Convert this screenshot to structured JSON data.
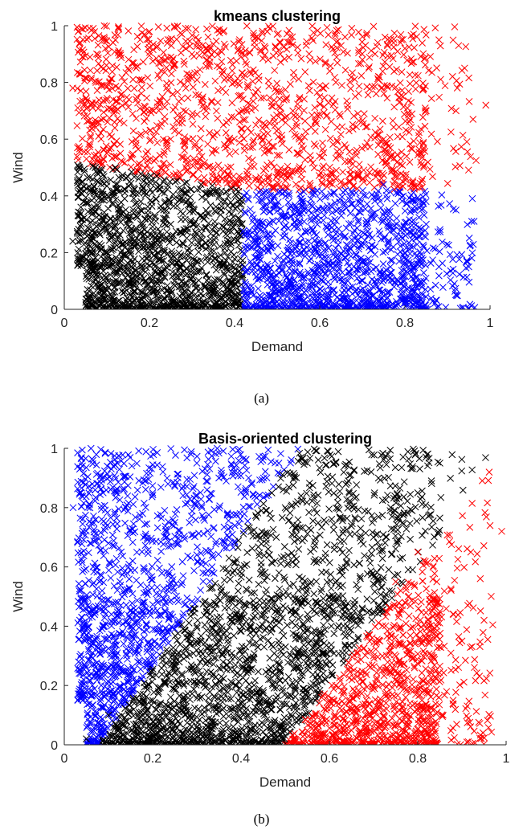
{
  "chart_data": [
    {
      "type": "scatter",
      "title": "kmeans clustering",
      "xlabel": "Demand",
      "ylabel": "Wind",
      "xlim": [
        0,
        1
      ],
      "ylim": [
        0,
        1
      ],
      "xticks": [
        "0",
        "0.2",
        "0.4",
        "0.6",
        "0.8",
        "1"
      ],
      "yticks": [
        "0",
        "0.2",
        "0.4",
        "0.6",
        "0.8",
        "1"
      ],
      "marker": "x",
      "grid": false,
      "caption": "(a)",
      "clusters": [
        {
          "color": "#ff0000",
          "description_region": "wind above ~0.42-0.5 boundary",
          "sample_points": [
            [
              0.02,
              0.78
            ],
            [
              0.05,
              0.72
            ],
            [
              0.08,
              0.66
            ],
            [
              0.1,
              0.55
            ],
            [
              0.12,
              0.95
            ],
            [
              0.15,
              0.85
            ],
            [
              0.2,
              0.7
            ],
            [
              0.25,
              0.6
            ],
            [
              0.3,
              0.9
            ],
            [
              0.35,
              0.5
            ],
            [
              0.4,
              0.8
            ],
            [
              0.45,
              0.65
            ],
            [
              0.5,
              0.97
            ],
            [
              0.55,
              0.55
            ],
            [
              0.6,
              0.75
            ],
            [
              0.65,
              0.45
            ],
            [
              0.7,
              0.88
            ],
            [
              0.75,
              0.6
            ],
            [
              0.8,
              0.92
            ],
            [
              0.85,
              0.7
            ],
            [
              0.88,
              0.95
            ],
            [
              0.92,
              0.7
            ],
            [
              0.96,
              0.67
            ],
            [
              0.99,
              0.72
            ]
          ]
        },
        {
          "color": "#000000",
          "description_region": "demand below ~0.42, wind below ~0.5",
          "sample_points": [
            [
              0.02,
              0.24
            ],
            [
              0.04,
              0.3
            ],
            [
              0.06,
              0.05
            ],
            [
              0.08,
              0.45
            ],
            [
              0.1,
              0.2
            ],
            [
              0.12,
              0.5
            ],
            [
              0.15,
              0.1
            ],
            [
              0.18,
              0.38
            ],
            [
              0.2,
              0.02
            ],
            [
              0.25,
              0.3
            ],
            [
              0.3,
              0.15
            ],
            [
              0.35,
              0.42
            ],
            [
              0.4,
              0.05
            ]
          ]
        },
        {
          "color": "#0000ff",
          "description_region": "demand above ~0.42, wind below ~0.42",
          "sample_points": [
            [
              0.43,
              0.05
            ],
            [
              0.48,
              0.3
            ],
            [
              0.52,
              0.4
            ],
            [
              0.6,
              0.15
            ],
            [
              0.65,
              0.35
            ],
            [
              0.7,
              0.1
            ],
            [
              0.75,
              0.44
            ],
            [
              0.8,
              0.2
            ],
            [
              0.85,
              0.3
            ],
            [
              0.88,
              0.15
            ],
            [
              0.92,
              0.35
            ],
            [
              0.95,
              0.15
            ]
          ]
        }
      ]
    },
    {
      "type": "scatter",
      "title": "Basis-oriented clustering",
      "xlabel": "Demand",
      "ylabel": "Wind",
      "xlim": [
        0,
        1
      ],
      "ylim": [
        0,
        1
      ],
      "xticks": [
        "0",
        "0.2",
        "0.4",
        "0.6",
        "0.8",
        "1"
      ],
      "yticks": [
        "0",
        "0.2",
        "0.4",
        "0.6",
        "0.8",
        "1"
      ],
      "marker": "x",
      "grid": false,
      "caption": "(b)",
      "clusters": [
        {
          "color": "#0000ff",
          "description_region": "upper-left: wind above line from (0.1,0) to (0.5,1)",
          "sample_points": [
            [
              0.02,
              0.8
            ],
            [
              0.04,
              0.2
            ],
            [
              0.06,
              0.3
            ],
            [
              0.08,
              0.55
            ],
            [
              0.1,
              0.68
            ],
            [
              0.12,
              0.95
            ],
            [
              0.15,
              0.4
            ],
            [
              0.2,
              0.85
            ],
            [
              0.25,
              0.75
            ],
            [
              0.3,
              0.95
            ],
            [
              0.35,
              0.9
            ]
          ]
        },
        {
          "color": "#000000",
          "description_region": "middle diagonal band",
          "sample_points": [
            [
              0.05,
              0.02
            ],
            [
              0.1,
              0.1
            ],
            [
              0.2,
              0.15
            ],
            [
              0.3,
              0.4
            ],
            [
              0.4,
              0.6
            ],
            [
              0.5,
              0.8
            ],
            [
              0.55,
              0.95
            ],
            [
              0.6,
              0.5
            ],
            [
              0.7,
              0.7
            ],
            [
              0.8,
              0.85
            ],
            [
              0.85,
              0.95
            ]
          ]
        },
        {
          "color": "#ff0000",
          "description_region": "lower-right: wind below line from (0.5,0) to (0.85,0.7)",
          "sample_points": [
            [
              0.52,
              0.02
            ],
            [
              0.6,
              0.15
            ],
            [
              0.7,
              0.3
            ],
            [
              0.75,
              0.55
            ],
            [
              0.8,
              0.65
            ],
            [
              0.85,
              0.45
            ],
            [
              0.88,
              0.15
            ],
            [
              0.9,
              0.35
            ],
            [
              0.92,
              0.65
            ],
            [
              0.95,
              0.42
            ],
            [
              0.99,
              0.72
            ]
          ]
        }
      ]
    }
  ]
}
